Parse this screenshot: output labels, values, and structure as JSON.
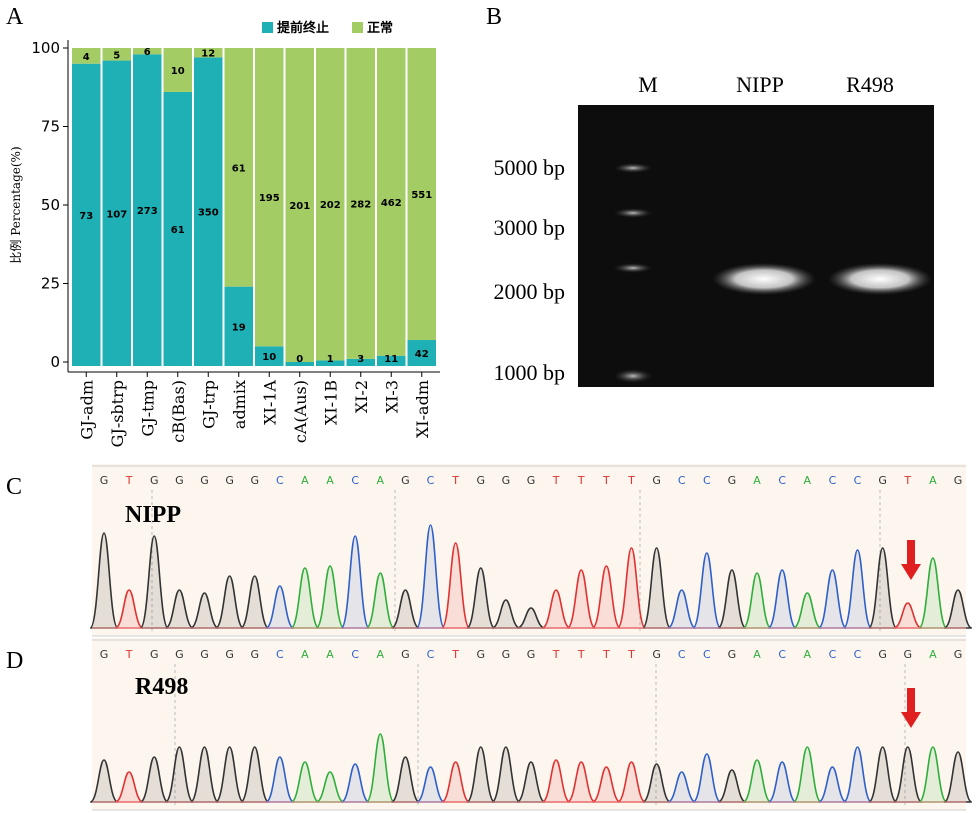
{
  "panels": {
    "a": "A",
    "b": "B",
    "c": "C",
    "d": "D"
  },
  "chart_data": {
    "type": "bar",
    "stacked": true,
    "ylabel": "比例 Percentage(%)",
    "yticks": [
      0,
      25,
      50,
      75,
      100
    ],
    "ylim": [
      -4,
      100
    ],
    "legend_position": "top-right",
    "categories": [
      "GJ-adm",
      "GJ-sbtrp",
      "GJ-tmp",
      "cB(Bas)",
      "GJ-trp",
      "admix",
      "XI-1A",
      "cA(Aus)",
      "XI-1B",
      "XI-2",
      "XI-3",
      "XI-adm"
    ],
    "series": [
      {
        "name": "提前终止",
        "color": "#1fb0b5",
        "values": [
          95,
          96,
          98,
          86,
          97,
          24,
          5,
          0,
          0.5,
          1,
          2,
          7
        ],
        "labels": [
          "73",
          "107",
          "273",
          "61",
          "350",
          "19",
          "10",
          "0",
          "1",
          "3",
          "11",
          "42"
        ]
      },
      {
        "name": "正常",
        "color": "#a3cc64",
        "values": [
          5,
          4,
          2,
          14,
          3,
          76,
          95,
          100,
          99.5,
          99,
          98,
          93
        ],
        "labels": [
          "4",
          "5",
          "6",
          "10",
          "12",
          "61",
          "195",
          "201",
          "202",
          "282",
          "462",
          "551"
        ]
      }
    ]
  },
  "gel": {
    "lanes": [
      "M",
      "NIPP",
      "R498"
    ],
    "markers": [
      "5000 bp",
      "3000 bp",
      "2000 bp",
      "1000 bp"
    ]
  },
  "seq_c": {
    "sample": "NIPP",
    "bases": [
      "G",
      "T",
      "G",
      "G",
      "G",
      "G",
      "G",
      "C",
      "A",
      "A",
      "C",
      "A",
      "G",
      "C",
      "T",
      "G",
      "G",
      "G",
      "T",
      "T",
      "T",
      "T",
      "G",
      "C",
      "C",
      "G",
      "A",
      "C",
      "A",
      "C",
      "C",
      "G",
      "T",
      "A",
      "G"
    ]
  },
  "seq_d": {
    "sample": "R498",
    "bases": [
      "G",
      "T",
      "G",
      "G",
      "G",
      "G",
      "G",
      "C",
      "A",
      "A",
      "C",
      "A",
      "G",
      "C",
      "T",
      "G",
      "G",
      "G",
      "T",
      "T",
      "T",
      "T",
      "G",
      "C",
      "C",
      "G",
      "A",
      "C",
      "A",
      "C",
      "C",
      "G",
      "G",
      "A",
      "G"
    ]
  },
  "base_colors": {
    "G": "#333333",
    "A": "#2fae3c",
    "C": "#2f5fc8",
    "T": "#e03232"
  },
  "arrow_color": "#e02020"
}
